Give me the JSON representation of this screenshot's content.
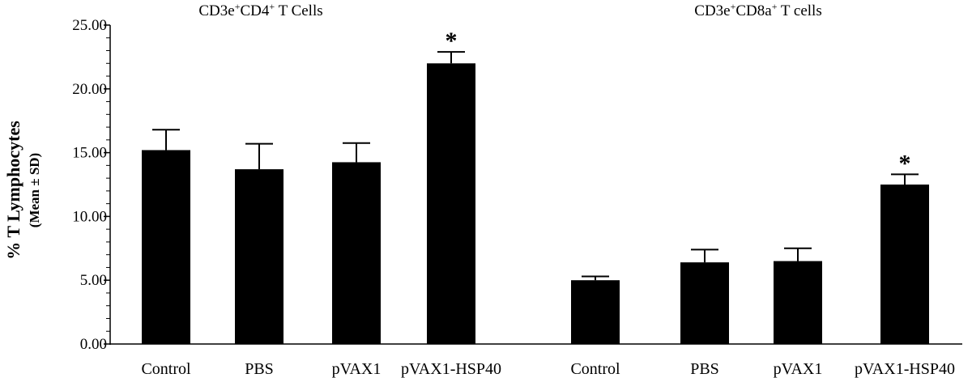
{
  "chart_data": {
    "type": "bar",
    "ylabel": "% T Lymphocytes",
    "ylabel_sub": "(Mean ± SD)",
    "ylim": [
      0,
      25
    ],
    "yticks": [
      "0.00",
      "5.00",
      "10.00",
      "15.00",
      "20.00",
      "25.00"
    ],
    "ytick_values": [
      0,
      5,
      10,
      15,
      20,
      25
    ],
    "minor_ticks_per_major": 5,
    "bar_color": "#000000",
    "groups": [
      {
        "title_parts": [
          "CD3e",
          "+",
          "CD4",
          "+",
          " T Cells"
        ],
        "categories": [
          "Control",
          "PBS",
          "pVAX1",
          "pVAX1-HSP40"
        ],
        "values": [
          15.2,
          13.7,
          14.25,
          22.0
        ],
        "errors": [
          1.6,
          2.0,
          1.5,
          0.9
        ],
        "annotations": [
          "",
          "",
          "",
          "*"
        ]
      },
      {
        "title_parts": [
          "CD3e",
          "+",
          "CD8a",
          "+",
          " T cells"
        ],
        "categories": [
          "Control",
          "PBS",
          "pVAX1",
          "pVAX1-HSP40"
        ],
        "values": [
          5.0,
          6.4,
          6.5,
          12.5
        ],
        "errors": [
          0.3,
          1.0,
          1.0,
          0.8
        ],
        "annotations": [
          "",
          "",
          "",
          "*"
        ]
      }
    ]
  }
}
